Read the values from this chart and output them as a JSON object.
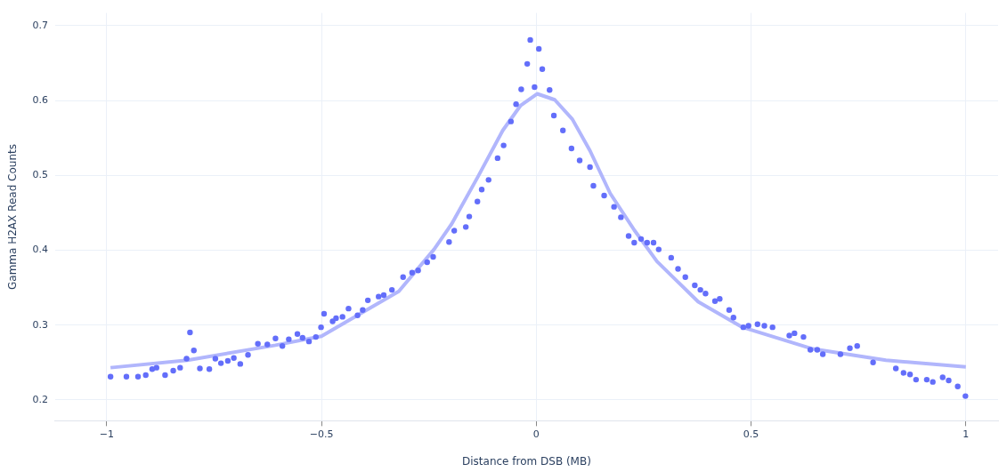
{
  "chart_data": {
    "type": "scatter",
    "xlabel": "Distance from DSB (MB)",
    "ylabel": "Gamma H2AX Read Counts",
    "xlim": [
      -1.12,
      1.075
    ],
    "ylim": [
      0.172,
      0.717
    ],
    "xticks": [
      -1,
      -0.5,
      0,
      0.5,
      1
    ],
    "yticks": [
      0.2,
      0.3,
      0.4,
      0.5,
      0.6,
      0.7
    ],
    "grid": true,
    "legend": false,
    "series": [
      {
        "type": "scatter",
        "marker": "circle",
        "color": "#636efa",
        "x": [
          -0.991,
          -0.954,
          -0.927,
          -0.909,
          -0.894,
          -0.884,
          -0.864,
          -0.845,
          -0.829,
          -0.814,
          -0.806,
          -0.797,
          -0.783,
          -0.761,
          -0.747,
          -0.734,
          -0.718,
          -0.704,
          -0.689,
          -0.671,
          -0.648,
          -0.626,
          -0.607,
          -0.591,
          -0.576,
          -0.556,
          -0.544,
          -0.529,
          -0.513,
          -0.501,
          -0.494,
          -0.474,
          -0.466,
          -0.451,
          -0.437,
          -0.416,
          -0.404,
          -0.392,
          -0.367,
          -0.355,
          -0.336,
          -0.31,
          -0.289,
          -0.275,
          -0.254,
          -0.24,
          -0.203,
          -0.191,
          -0.164,
          -0.156,
          -0.137,
          -0.127,
          -0.111,
          -0.09,
          -0.076,
          -0.059,
          -0.047,
          -0.035,
          -0.021,
          -0.014,
          -0.004,
          0.006,
          0.014,
          0.031,
          0.041,
          0.062,
          0.082,
          0.101,
          0.125,
          0.133,
          0.158,
          0.181,
          0.197,
          0.215,
          0.228,
          0.244,
          0.258,
          0.273,
          0.285,
          0.314,
          0.33,
          0.347,
          0.369,
          0.382,
          0.394,
          0.416,
          0.427,
          0.449,
          0.459,
          0.482,
          0.494,
          0.515,
          0.531,
          0.55,
          0.589,
          0.601,
          0.622,
          0.638,
          0.654,
          0.667,
          0.708,
          0.73,
          0.747,
          0.784,
          0.837,
          0.855,
          0.87,
          0.884,
          0.909,
          0.923,
          0.946,
          0.96,
          0.981,
          0.999
        ],
        "values": [
          0.231,
          0.231,
          0.231,
          0.233,
          0.241,
          0.243,
          0.233,
          0.239,
          0.243,
          0.255,
          0.29,
          0.266,
          0.242,
          0.241,
          0.255,
          0.249,
          0.252,
          0.256,
          0.248,
          0.26,
          0.275,
          0.274,
          0.282,
          0.272,
          0.281,
          0.288,
          0.283,
          0.278,
          0.284,
          0.297,
          0.315,
          0.305,
          0.309,
          0.311,
          0.322,
          0.313,
          0.32,
          0.333,
          0.338,
          0.34,
          0.347,
          0.364,
          0.37,
          0.373,
          0.384,
          0.391,
          0.411,
          0.426,
          0.431,
          0.445,
          0.465,
          0.481,
          0.494,
          0.523,
          0.54,
          0.572,
          0.595,
          0.615,
          0.649,
          0.681,
          0.618,
          0.669,
          0.642,
          0.614,
          0.58,
          0.56,
          0.536,
          0.52,
          0.511,
          0.486,
          0.473,
          0.458,
          0.444,
          0.419,
          0.41,
          0.415,
          0.41,
          0.41,
          0.401,
          0.39,
          0.375,
          0.364,
          0.353,
          0.347,
          0.342,
          0.332,
          0.335,
          0.32,
          0.31,
          0.297,
          0.299,
          0.301,
          0.299,
          0.297,
          0.286,
          0.289,
          0.284,
          0.267,
          0.267,
          0.261,
          0.261,
          0.269,
          0.272,
          0.25,
          0.242,
          0.236,
          0.234,
          0.227,
          0.227,
          0.224,
          0.23,
          0.226,
          0.218,
          0.205
        ]
      },
      {
        "type": "line",
        "color": "#b1b6fc",
        "x": [
          -0.991,
          -0.812,
          -0.607,
          -0.5,
          -0.32,
          -0.238,
          -0.197,
          -0.135,
          -0.078,
          -0.037,
          0.002,
          0.043,
          0.084,
          0.125,
          0.172,
          0.228,
          0.281,
          0.377,
          0.48,
          0.644,
          0.814,
          1.0
        ],
        "values": [
          0.243,
          0.253,
          0.273,
          0.285,
          0.345,
          0.401,
          0.435,
          0.499,
          0.56,
          0.593,
          0.609,
          0.601,
          0.575,
          0.533,
          0.476,
          0.427,
          0.385,
          0.331,
          0.297,
          0.268,
          0.253,
          0.244
        ]
      }
    ]
  }
}
